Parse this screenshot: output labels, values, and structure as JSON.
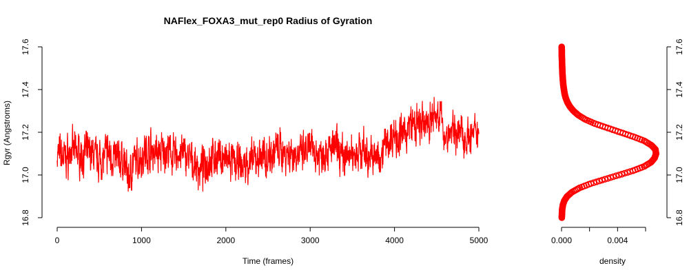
{
  "chart_data": [
    {
      "type": "line",
      "title": "NAFlex_FOXA3_mut_rep0 Radius of Gyration",
      "xlabel": "Time (frames)",
      "ylabel": "Rgyr (Angstroms)",
      "xlim": [
        0,
        5000
      ],
      "ylim": [
        16.8,
        17.6
      ],
      "x_ticks": [
        0,
        1000,
        2000,
        3000,
        4000,
        5000
      ],
      "x_tick_labels": [
        "0",
        "1000",
        "2000",
        "3000",
        "4000",
        "5000"
      ],
      "y_ticks": [
        16.8,
        17.0,
        17.2,
        17.4,
        17.6
      ],
      "y_tick_labels": [
        "16.8",
        "17.0",
        "17.2",
        "17.4",
        "17.6"
      ],
      "color": "#ff0000",
      "series": [
        {
          "x": [
            0,
            100,
            200,
            300,
            400,
            500,
            600,
            700,
            800,
            850,
            900,
            1000,
            1100,
            1200,
            1300,
            1400,
            1500,
            1600,
            1700,
            1800,
            1900,
            2000,
            2100,
            2200,
            2300,
            2400,
            2500,
            2600,
            2700,
            2800,
            2900,
            3000,
            3100,
            3200,
            3300,
            3400,
            3500,
            3600,
            3700,
            3800,
            3900,
            4000,
            4100,
            4200,
            4300,
            4400,
            4500,
            4520,
            4600,
            4700,
            4800,
            4900,
            5000
          ],
          "y": [
            17.1,
            17.08,
            17.12,
            17.09,
            17.11,
            17.07,
            17.1,
            17.08,
            17.06,
            16.98,
            17.05,
            17.09,
            17.12,
            17.1,
            17.11,
            17.09,
            17.1,
            17.06,
            17.02,
            17.07,
            17.09,
            17.07,
            17.05,
            17.04,
            17.06,
            17.08,
            17.09,
            17.12,
            17.11,
            17.1,
            17.09,
            17.12,
            17.1,
            17.11,
            17.13,
            17.08,
            17.1,
            17.12,
            17.09,
            17.08,
            17.15,
            17.19,
            17.18,
            17.24,
            17.22,
            17.25,
            17.28,
            17.3,
            17.18,
            17.21,
            17.19,
            17.17,
            17.2
          ]
        }
      ]
    },
    {
      "type": "scatter",
      "xlabel": "density",
      "ylabel": "",
      "xlim": [
        0,
        0.006
      ],
      "ylim": [
        16.8,
        17.6
      ],
      "x_ticks": [
        0,
        0.002,
        0.004,
        0.006
      ],
      "x_tick_labels": [
        "0.000",
        "",
        "0.004",
        ""
      ],
      "y_ticks": [
        16.8,
        17.0,
        17.2,
        17.4,
        17.6
      ],
      "y_tick_labels": [
        "16.8",
        "17.0",
        "17.2",
        "17.4",
        "17.6"
      ],
      "color": "#ff0000",
      "points": {
        "y": [
          16.8,
          16.82,
          16.84,
          16.86,
          16.88,
          16.9,
          16.92,
          16.94,
          16.96,
          16.98,
          17.0,
          17.02,
          17.04,
          17.06,
          17.08,
          17.1,
          17.12,
          17.14,
          17.16,
          17.18,
          17.2,
          17.22,
          17.24,
          17.26,
          17.28,
          17.3,
          17.32,
          17.34,
          17.36,
          17.38,
          17.4,
          17.42,
          17.44,
          17.46,
          17.48,
          17.5,
          17.52,
          17.54,
          17.56,
          17.58,
          17.6
        ],
        "x": [
          2e-05,
          3e-05,
          5e-05,
          0.0001,
          0.0002,
          0.0004,
          0.00075,
          0.0013,
          0.0021,
          0.0031,
          0.0041,
          0.0051,
          0.0059,
          0.0064,
          0.00665,
          0.00675,
          0.0067,
          0.0064,
          0.0059,
          0.0051,
          0.0042,
          0.0033,
          0.0024,
          0.0017,
          0.0012,
          0.00085,
          0.0006,
          0.00042,
          0.0003,
          0.00022,
          0.00017,
          0.00013,
          0.0001,
          8e-05,
          6e-05,
          5e-05,
          4e-05,
          3e-05,
          2e-05,
          2e-05,
          1e-05
        ]
      }
    }
  ]
}
